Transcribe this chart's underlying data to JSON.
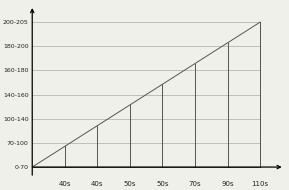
{
  "ytick_labels": [
    "0-70",
    "70-100",
    "100-140",
    "140-160",
    "160-180",
    "180-200",
    "200-205"
  ],
  "ytick_positions": [
    0,
    1,
    2,
    3,
    4,
    5,
    6
  ],
  "xtick_labels": [
    "40s",
    "40s",
    "50s",
    "50s",
    "70s",
    "90s",
    "110s"
  ],
  "xtick_positions": [
    1,
    2,
    3,
    4,
    5,
    6,
    7
  ],
  "line_color": "#555555",
  "bg_color": "#f0f0ea",
  "grid_color": "#aaaaaa",
  "x_origin": 0,
  "y_origin": 0,
  "x_end": 7,
  "y_end": 6,
  "xlim": [
    -0.05,
    7.8
  ],
  "ylim": [
    -0.5,
    6.8
  ],
  "figsize": [
    2.89,
    1.9
  ],
  "dpi": 100
}
